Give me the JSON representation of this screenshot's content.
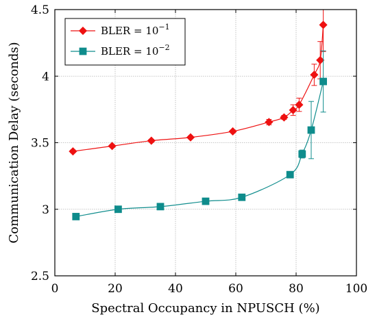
{
  "chart_data": {
    "type": "line",
    "title": "",
    "xlabel": "Spectral Occupancy in NPUSCH (%)",
    "ylabel": "Communication Delay (seconds)",
    "xlim": [
      0,
      100
    ],
    "ylim": [
      2.5,
      4.5
    ],
    "xticks": [
      0,
      20,
      40,
      60,
      80,
      100
    ],
    "yticks": [
      2.5,
      3,
      3.5,
      4,
      4.5
    ],
    "xtick_labels": [
      "0",
      "20",
      "40",
      "60",
      "80",
      "100"
    ],
    "ytick_labels": [
      "2.5",
      "3",
      "3.5",
      "4",
      "4.5"
    ],
    "grid": true,
    "legend_position": "top-left",
    "series": [
      {
        "name_base": "BLER = 10",
        "name_exp": "−1",
        "color": "#ee1111",
        "marker": "diamond",
        "points": [
          {
            "x": 6,
            "y": 3.435,
            "err": 0.01
          },
          {
            "x": 19,
            "y": 3.475,
            "err": 0.01
          },
          {
            "x": 32,
            "y": 3.515,
            "err": 0.01
          },
          {
            "x": 45,
            "y": 3.54,
            "err": 0.01
          },
          {
            "x": 59,
            "y": 3.585,
            "err": 0.01
          },
          {
            "x": 71,
            "y": 3.655,
            "err": 0.02
          },
          {
            "x": 76,
            "y": 3.69,
            "err": 0.015
          },
          {
            "x": 79,
            "y": 3.745,
            "err": 0.04
          },
          {
            "x": 81,
            "y": 3.785,
            "err": 0.05
          },
          {
            "x": 86,
            "y": 4.01,
            "err": 0.08
          },
          {
            "x": 88,
            "y": 4.12,
            "err": 0.14
          },
          {
            "x": 89,
            "y": 4.385,
            "err": 0.2
          }
        ]
      },
      {
        "name_base": "BLER = 10",
        "name_exp": "−2",
        "color": "#0e8c8c",
        "marker": "square",
        "points": [
          {
            "x": 7,
            "y": 2.945,
            "err": 0.005
          },
          {
            "x": 21,
            "y": 3.0,
            "err": 0.005
          },
          {
            "x": 35,
            "y": 3.02,
            "err": 0.005
          },
          {
            "x": 50,
            "y": 3.06,
            "err": 0.005
          },
          {
            "x": 62,
            "y": 3.09,
            "err": 0.005
          },
          {
            "x": 78,
            "y": 3.26,
            "err": 0.02
          },
          {
            "x": 82,
            "y": 3.415,
            "err": 0.03
          },
          {
            "x": 85,
            "y": 3.595,
            "err": 0.215
          },
          {
            "x": 89,
            "y": 3.96,
            "err": 0.23
          }
        ]
      }
    ]
  }
}
